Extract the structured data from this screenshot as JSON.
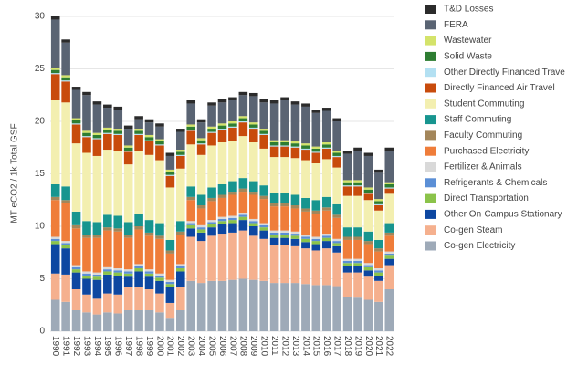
{
  "chart_data": {
    "type": "stacked_bar",
    "y_label": "MT eCO2 / 1k Total GSF",
    "categories": [
      "1990",
      "1991",
      "1992",
      "1993",
      "1994",
      "1995",
      "1996",
      "1997",
      "1998",
      "1999",
      "2000",
      "2001",
      "2002",
      "2003",
      "2004",
      "2005",
      "2006",
      "2007",
      "2008",
      "2009",
      "2010",
      "2011",
      "2012",
      "2013",
      "2014",
      "2015",
      "2016",
      "2017",
      "2018",
      "2019",
      "2020",
      "2021",
      "2022"
    ],
    "ylim": [
      0,
      30
    ],
    "yticks": [
      0,
      5,
      10,
      15,
      20,
      25,
      30
    ],
    "grid": true,
    "series": [
      {
        "name": "Co-gen Electricity",
        "color": "#9eaab8",
        "values": [
          3.0,
          2.8,
          2.0,
          1.8,
          1.6,
          1.8,
          1.7,
          2.0,
          2.0,
          2.0,
          1.8,
          1.2,
          2.0,
          4.8,
          4.6,
          4.8,
          4.8,
          4.9,
          5.0,
          4.9,
          4.8,
          4.6,
          4.6,
          4.6,
          4.5,
          4.4,
          4.4,
          4.3,
          3.3,
          3.2,
          3.0,
          2.8,
          4.0
        ]
      },
      {
        "name": "Co-gen Steam",
        "color": "#f5b08e",
        "values": [
          2.5,
          2.6,
          2.0,
          1.7,
          1.5,
          1.8,
          1.8,
          2.2,
          2.2,
          2.0,
          1.8,
          1.5,
          2.2,
          4.2,
          4.0,
          4.3,
          4.5,
          4.5,
          4.6,
          4.2,
          4.0,
          3.6,
          3.6,
          3.5,
          3.4,
          3.3,
          3.5,
          3.2,
          2.3,
          2.4,
          2.2,
          2.0,
          2.3
        ]
      },
      {
        "name": "Other On-Campus Stationary",
        "color": "#0d47a1",
        "values": [
          2.8,
          2.5,
          1.6,
          1.5,
          1.8,
          1.8,
          1.8,
          1.0,
          1.5,
          1.2,
          1.2,
          1.5,
          1.5,
          0.8,
          0.8,
          0.8,
          0.9,
          0.9,
          1.0,
          0.9,
          0.8,
          0.7,
          0.7,
          0.7,
          0.6,
          0.6,
          0.7,
          0.6,
          0.6,
          0.6,
          0.6,
          0.5,
          0.6
        ]
      },
      {
        "name": "Direct Transportation",
        "color": "#8bc34a",
        "values": [
          0.3,
          0.3,
          0.3,
          0.3,
          0.3,
          0.3,
          0.3,
          0.3,
          0.3,
          0.3,
          0.3,
          0.3,
          0.3,
          0.3,
          0.3,
          0.3,
          0.3,
          0.3,
          0.3,
          0.3,
          0.3,
          0.3,
          0.3,
          0.3,
          0.3,
          0.3,
          0.3,
          0.3,
          0.3,
          0.3,
          0.3,
          0.3,
          0.3
        ]
      },
      {
        "name": "Refrigerants & Chemicals",
        "color": "#5b8fd6",
        "values": [
          0.2,
          0.2,
          0.2,
          0.2,
          0.2,
          0.2,
          0.2,
          0.2,
          0.2,
          0.2,
          0.2,
          0.2,
          0.2,
          0.2,
          0.2,
          0.2,
          0.2,
          0.2,
          0.2,
          0.2,
          0.2,
          0.2,
          0.2,
          0.2,
          0.2,
          0.2,
          0.2,
          0.2,
          0.2,
          0.2,
          0.2,
          0.2,
          0.2
        ]
      },
      {
        "name": "Fertilizer & Animals",
        "color": "#d9d9d9",
        "values": [
          0.2,
          0.2,
          0.2,
          0.2,
          0.2,
          0.2,
          0.2,
          0.2,
          0.2,
          0.2,
          0.2,
          0.2,
          0.2,
          0.2,
          0.2,
          0.2,
          0.2,
          0.2,
          0.2,
          0.2,
          0.2,
          0.2,
          0.2,
          0.2,
          0.2,
          0.2,
          0.2,
          0.2,
          0.2,
          0.2,
          0.2,
          0.2,
          0.2
        ]
      },
      {
        "name": "Purchased Electricity",
        "color": "#ef7d3a",
        "values": [
          3.5,
          3.6,
          3.5,
          3.2,
          3.3,
          3.5,
          3.5,
          3.0,
          3.3,
          3.2,
          3.3,
          2.5,
          2.8,
          2.0,
          1.6,
          1.8,
          1.8,
          2.0,
          2.0,
          2.3,
          2.3,
          2.3,
          2.3,
          2.2,
          2.2,
          2.2,
          2.2,
          2.0,
          1.8,
          1.8,
          1.8,
          1.6,
          1.5
        ]
      },
      {
        "name": "Faculty Commuting",
        "color": "#a3865a",
        "values": [
          0.3,
          0.3,
          0.3,
          0.3,
          0.3,
          0.3,
          0.3,
          0.3,
          0.3,
          0.3,
          0.3,
          0.3,
          0.3,
          0.3,
          0.3,
          0.3,
          0.3,
          0.3,
          0.3,
          0.3,
          0.3,
          0.3,
          0.3,
          0.3,
          0.3,
          0.3,
          0.3,
          0.3,
          0.3,
          0.3,
          0.3,
          0.3,
          0.3
        ]
      },
      {
        "name": "Staff Commuting",
        "color": "#17958f",
        "values": [
          1.2,
          1.3,
          1.3,
          1.3,
          1.2,
          1.2,
          1.2,
          1.2,
          1.2,
          1.2,
          1.2,
          1.0,
          1.0,
          1.0,
          1.0,
          1.0,
          1.0,
          1.0,
          1.0,
          1.0,
          1.0,
          1.0,
          1.0,
          1.0,
          1.0,
          1.0,
          1.0,
          1.0,
          0.9,
          0.9,
          0.9,
          0.8,
          0.9
        ]
      },
      {
        "name": "Student Commuting",
        "color": "#f3efb0",
        "values": [
          8.0,
          8.0,
          6.5,
          6.5,
          6.3,
          6.2,
          6.2,
          5.5,
          6.0,
          6.2,
          6.0,
          5.0,
          5.0,
          4.0,
          3.8,
          4.0,
          4.0,
          3.8,
          4.0,
          3.7,
          3.5,
          3.4,
          3.4,
          3.5,
          3.6,
          3.5,
          3.6,
          3.5,
          3.0,
          3.0,
          3.0,
          2.8,
          2.8
        ]
      },
      {
        "name": "Directly Financed Air Travel",
        "color": "#c84b0c",
        "values": [
          2.5,
          2.0,
          1.8,
          1.5,
          1.6,
          1.5,
          1.5,
          1.2,
          1.5,
          1.3,
          1.4,
          1.1,
          1.2,
          1.3,
          1.0,
          1.2,
          1.2,
          1.3,
          1.3,
          1.3,
          1.3,
          1.0,
          1.0,
          1.0,
          1.0,
          1.0,
          1.0,
          1.0,
          0.9,
          0.9,
          0.6,
          0.5,
          0.5
        ]
      },
      {
        "name": "Other Directly Financed Trave",
        "color": "#b3e0f2",
        "values": [
          0.1,
          0.1,
          0.1,
          0.1,
          0.1,
          0.1,
          0.1,
          0.1,
          0.1,
          0.1,
          0.1,
          0.1,
          0.1,
          0.1,
          0.1,
          0.1,
          0.1,
          0.1,
          0.1,
          0.1,
          0.1,
          0.1,
          0.1,
          0.1,
          0.1,
          0.1,
          0.1,
          0.1,
          0.1,
          0.1,
          0.1,
          0.1,
          0.1
        ]
      },
      {
        "name": "Solid Waste",
        "color": "#2e7d32",
        "values": [
          0.3,
          0.3,
          0.3,
          0.3,
          0.3,
          0.3,
          0.3,
          0.3,
          0.3,
          0.3,
          0.3,
          0.3,
          0.3,
          0.3,
          0.3,
          0.3,
          0.3,
          0.3,
          0.3,
          0.3,
          0.3,
          0.3,
          0.3,
          0.3,
          0.3,
          0.3,
          0.3,
          0.3,
          0.3,
          0.3,
          0.3,
          0.3,
          0.3
        ]
      },
      {
        "name": "Wastewater",
        "color": "#d4e36a",
        "values": [
          0.2,
          0.2,
          0.2,
          0.2,
          0.2,
          0.2,
          0.2,
          0.2,
          0.2,
          0.2,
          0.2,
          0.2,
          0.2,
          0.2,
          0.2,
          0.2,
          0.2,
          0.2,
          0.2,
          0.2,
          0.2,
          0.2,
          0.2,
          0.2,
          0.2,
          0.2,
          0.2,
          0.2,
          0.2,
          0.2,
          0.2,
          0.2,
          0.2
        ]
      },
      {
        "name": "FERA",
        "color": "#5a6473",
        "values": [
          4.6,
          3.1,
          2.7,
          3.4,
          2.7,
          1.9,
          1.8,
          1.6,
          0.9,
          1.2,
          1.2,
          1.3,
          1.7,
          2.0,
          1.5,
          2.0,
          2.0,
          2.0,
          2.0,
          2.5,
          2.5,
          3.5,
          3.8,
          3.5,
          3.5,
          3.2,
          3.0,
          2.8,
          2.5,
          2.8,
          3.0,
          2.5,
          3.0
        ]
      },
      {
        "name": "T&D Losses",
        "color": "#2b2b2b",
        "values": [
          0.3,
          0.3,
          0.3,
          0.3,
          0.3,
          0.3,
          0.3,
          0.3,
          0.3,
          0.3,
          0.3,
          0.3,
          0.3,
          0.3,
          0.3,
          0.3,
          0.3,
          0.3,
          0.3,
          0.3,
          0.3,
          0.3,
          0.3,
          0.3,
          0.3,
          0.3,
          0.3,
          0.3,
          0.3,
          0.3,
          0.3,
          0.3,
          0.3
        ]
      }
    ]
  }
}
